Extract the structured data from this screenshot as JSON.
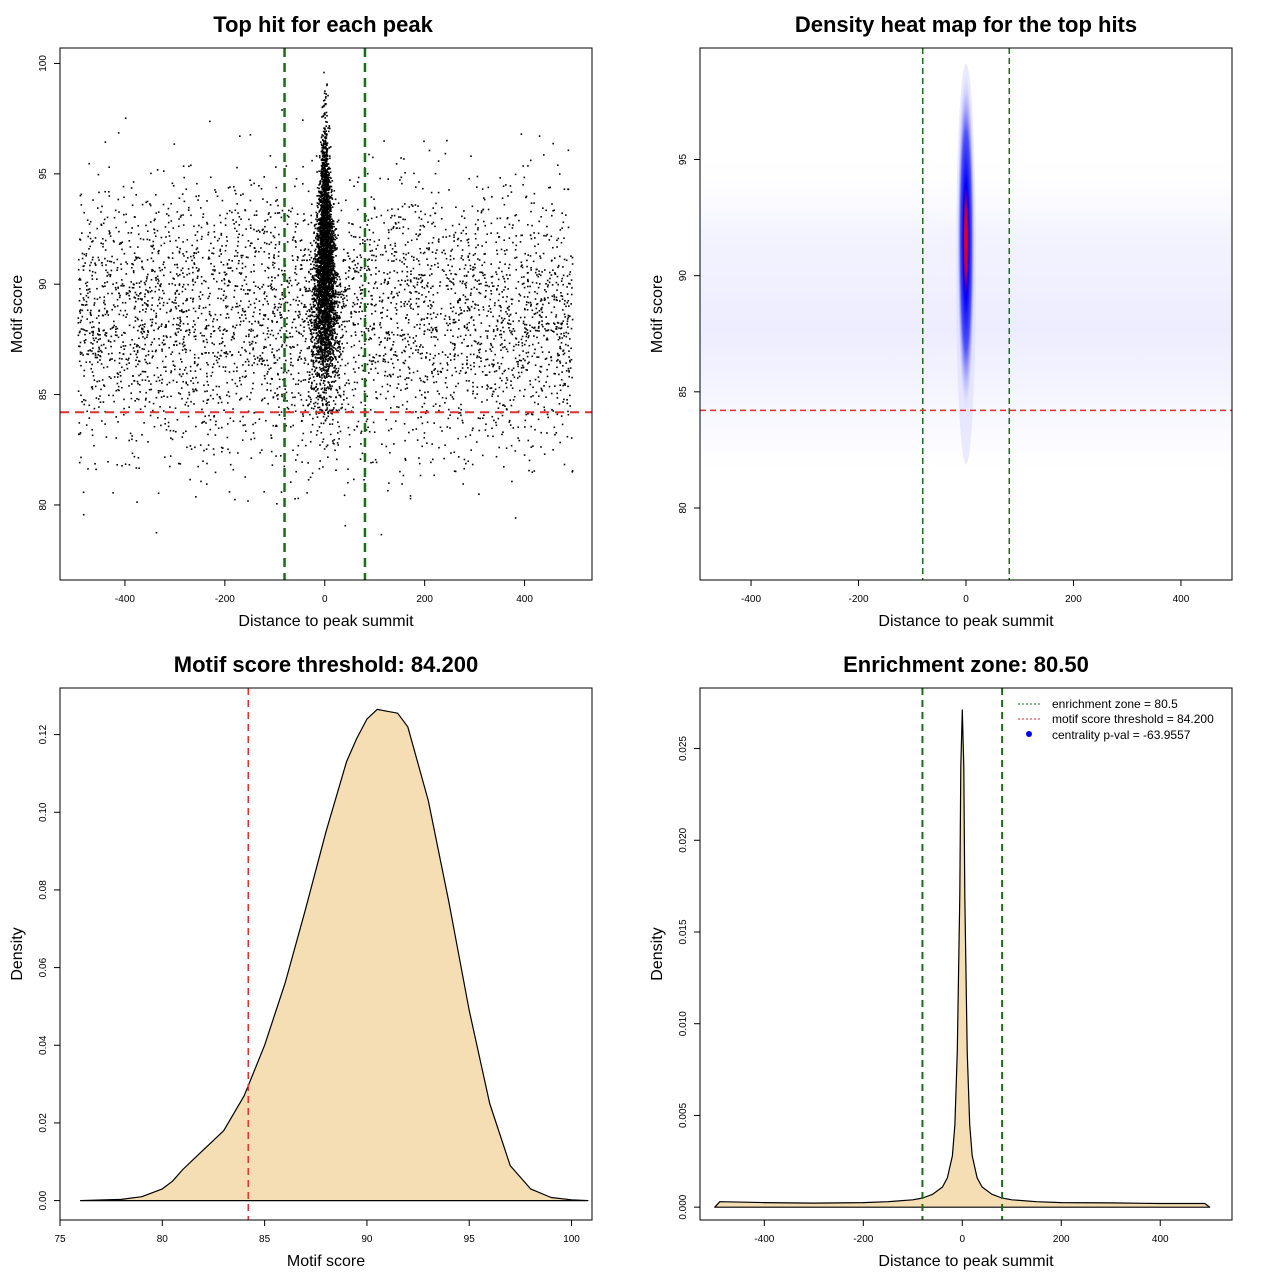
{
  "chart_data": [
    {
      "type": "scatter",
      "title": "Top hit for each peak",
      "xlabel": "Distance to peak summit",
      "ylabel": "Motif score",
      "xlim": [
        -530,
        535
      ],
      "ylim": [
        76.6,
        100.7
      ],
      "xticks": [
        -400,
        -200,
        0,
        200,
        400
      ],
      "yticks": [
        80,
        85,
        90,
        95,
        100
      ],
      "xtick_labels": [
        "-400",
        "-200",
        "0",
        "200",
        "400"
      ],
      "ytick_labels": [
        "80",
        "85",
        "90",
        "95",
        "100"
      ],
      "enrichment_zone": [
        -80.5,
        80.5
      ],
      "threshold": 84.2,
      "points_description_range": {
        "x": [
          -495,
          495
        ],
        "y": [
          76.9,
          99.8
        ]
      }
    },
    {
      "type": "heatmap",
      "title": "Density heat map for the top hits",
      "xlabel": "Distance to peak summit",
      "ylabel": "Motif score",
      "xlim": [
        -495,
        495
      ],
      "ylim": [
        76.9,
        99.8
      ],
      "xticks": [
        -400,
        -200,
        0,
        200,
        400
      ],
      "yticks": [
        80,
        85,
        90,
        95
      ],
      "xtick_labels": [
        "-400",
        "-200",
        "0",
        "200",
        "400"
      ],
      "ytick_labels": [
        "80",
        "85",
        "90",
        "95"
      ],
      "enrichment_zone": [
        -80.5,
        80.5
      ],
      "threshold": 84.2,
      "peak": {
        "x": 0,
        "y": 91.5
      }
    },
    {
      "type": "area",
      "title": "Motif score threshold: 84.200",
      "xlabel": "Motif score",
      "ylabel": "Density",
      "xlim": [
        75,
        101
      ],
      "ylim": [
        -0.005,
        0.132
      ],
      "xticks": [
        75,
        80,
        85,
        90,
        95,
        100
      ],
      "yticks": [
        0.0,
        0.02,
        0.04,
        0.06,
        0.08,
        0.1,
        0.12
      ],
      "xtick_labels": [
        "75",
        "80",
        "85",
        "90",
        "95",
        "100"
      ],
      "ytick_labels": [
        "0.00",
        "0.02",
        "0.04",
        "0.06",
        "0.08",
        "0.10",
        "0.12"
      ],
      "threshold": 84.2,
      "x": [
        76,
        78,
        79,
        80,
        80.5,
        81,
        82,
        83,
        84,
        85,
        86,
        87,
        88,
        89,
        89.5,
        90,
        90.5,
        91,
        91.5,
        92,
        93,
        94,
        95,
        96,
        97,
        98,
        99,
        100,
        100.8
      ],
      "y": [
        0.0,
        0.0003,
        0.001,
        0.003,
        0.005,
        0.008,
        0.013,
        0.018,
        0.027,
        0.04,
        0.056,
        0.075,
        0.095,
        0.113,
        0.119,
        0.124,
        0.1265,
        0.126,
        0.1255,
        0.122,
        0.103,
        0.077,
        0.049,
        0.025,
        0.009,
        0.003,
        0.0008,
        0.0002,
        0.0
      ]
    },
    {
      "type": "area",
      "title": "Enrichment zone: 80.50",
      "xlabel": "Distance to peak summit",
      "ylabel": "Density",
      "xlim": [
        -530,
        545
      ],
      "ylim": [
        -0.0007,
        0.0283
      ],
      "xticks": [
        -400,
        -200,
        0,
        200,
        400
      ],
      "yticks": [
        0.0,
        0.005,
        0.01,
        0.015,
        0.02,
        0.025
      ],
      "xtick_labels": [
        "-400",
        "-200",
        "0",
        "200",
        "400"
      ],
      "ytick_labels": [
        "0.000",
        "0.005",
        "0.010",
        "0.015",
        "0.020",
        "0.025"
      ],
      "enrichment_zone": [
        -80.5,
        80.5
      ],
      "x": [
        -500,
        -490,
        -400,
        -300,
        -200,
        -150,
        -100,
        -80,
        -60,
        -40,
        -30,
        -20,
        -15,
        -10,
        -5,
        -3,
        0,
        3,
        5,
        10,
        15,
        20,
        30,
        40,
        60,
        80,
        100,
        150,
        200,
        300,
        400,
        490,
        500
      ],
      "y": [
        0.0,
        0.0003,
        0.00025,
        0.00022,
        0.00025,
        0.0003,
        0.0004,
        0.0005,
        0.0007,
        0.0011,
        0.0016,
        0.0028,
        0.0045,
        0.0085,
        0.017,
        0.024,
        0.0271,
        0.024,
        0.017,
        0.0085,
        0.0045,
        0.0028,
        0.0016,
        0.0011,
        0.0007,
        0.0005,
        0.0004,
        0.0003,
        0.00025,
        0.00023,
        0.0002,
        0.0002,
        0.0
      ],
      "legend": [
        {
          "label": "enrichment zone = 80.5",
          "style": "dotted",
          "color": "#1a7a1a"
        },
        {
          "label": "motif score threshold = 84.200",
          "style": "dotted",
          "color": "#e03030"
        },
        {
          "label": "centrality p-val = -63.9557",
          "style": "point",
          "color": "#0000ff"
        }
      ]
    }
  ],
  "colors": {
    "zone": "#1a6e1a",
    "threshold": "#e03030",
    "fill": "#f5deb3",
    "points": "#000000",
    "heat_low": "#ffffff",
    "heat_mid": "#0000ff",
    "heat_high": "#ff0000"
  }
}
